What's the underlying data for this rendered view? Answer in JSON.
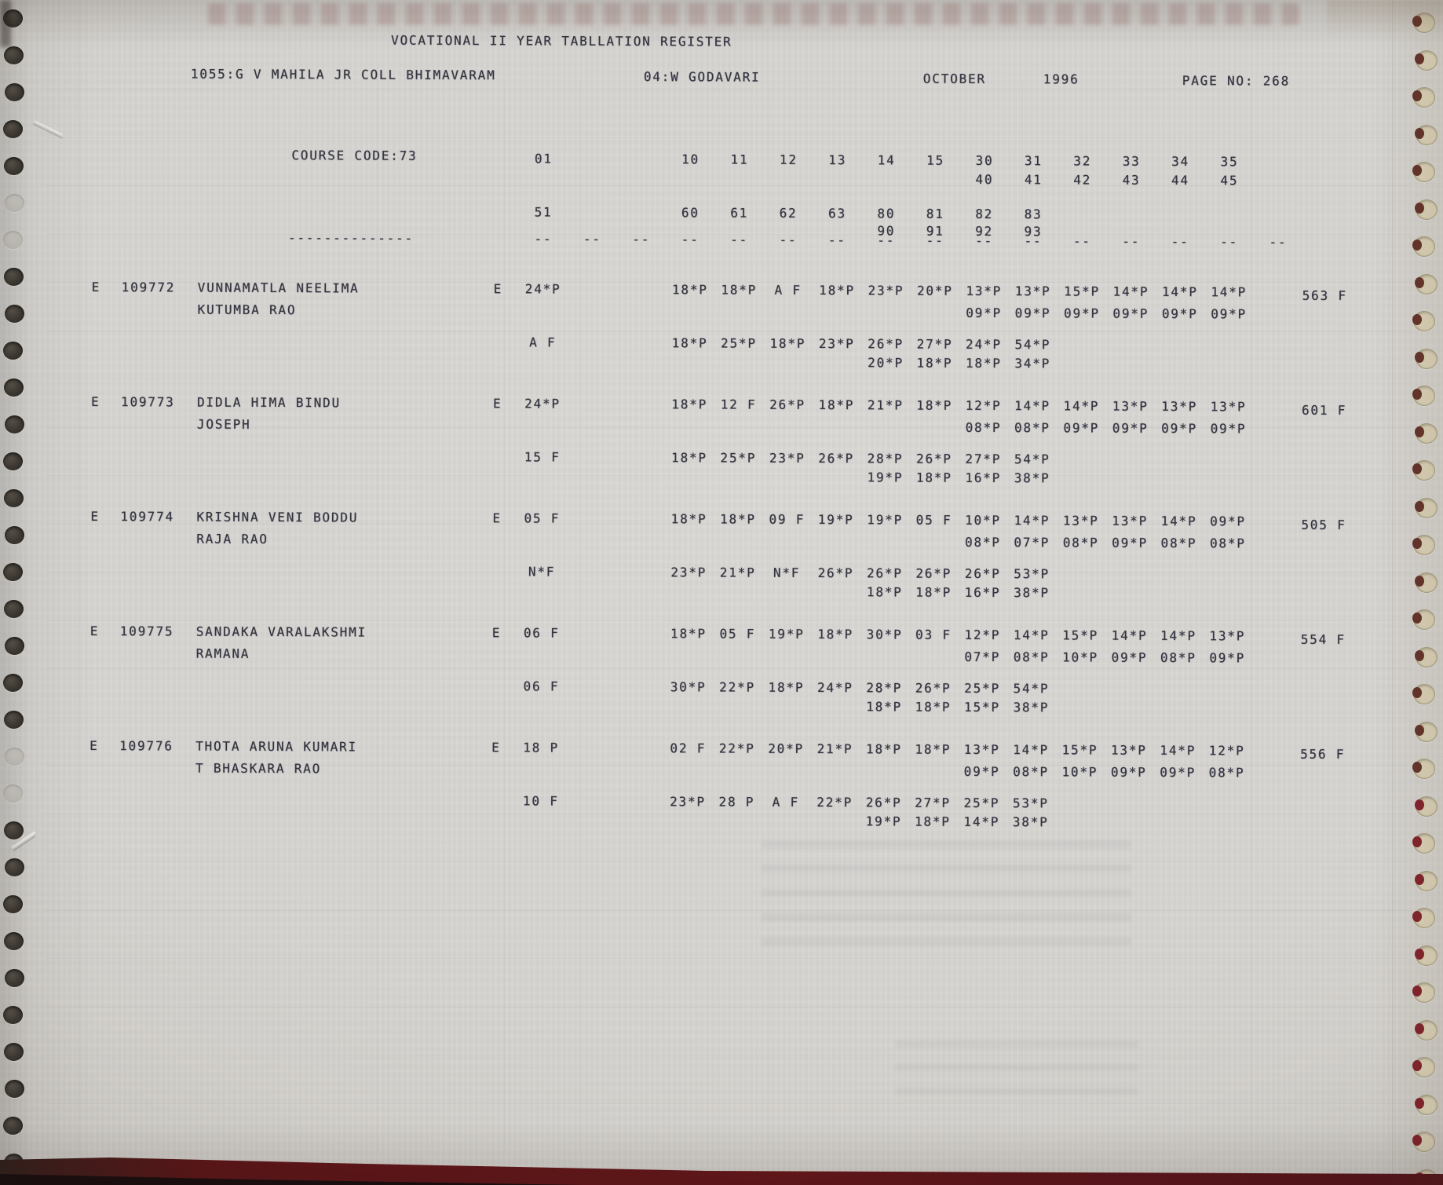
{
  "header": {
    "title": "VOCATIONAL II YEAR TABLLATION REGISTER",
    "college": "1055:G V MAHILA JR COLL BHIMAVARAM",
    "district": "04:W GODAVARI",
    "month": "OCTOBER",
    "year": "1996",
    "page_no": "PAGE NO: 268"
  },
  "course": {
    "label": "COURSE CODE:73",
    "col01": "01",
    "row1": [
      "10",
      "11",
      "12",
      "13",
      "14",
      "15",
      "30",
      "31",
      "32",
      "33",
      "34",
      "35"
    ],
    "row2": [
      "40",
      "41",
      "42",
      "43",
      "44",
      "45"
    ],
    "col51": "51",
    "row3": [
      "60",
      "61",
      "62",
      "63",
      "80",
      "81",
      "82",
      "83"
    ],
    "row4": [
      "90",
      "91",
      "92",
      "93"
    ],
    "dash_long": "--------------",
    "dash": "--"
  },
  "records": [
    {
      "flag": "E",
      "regno": "109772",
      "name1": "VUNNAMATLA NEELIMA",
      "name2": "KUTUMBA RAO",
      "p1flag": "E",
      "p1first": "24*P",
      "p1r1": [
        "18*P",
        "18*P",
        "A F",
        "18*P",
        "23*P",
        "20*P",
        "13*P",
        "13*P",
        "15*P",
        "14*P",
        "14*P",
        "14*P"
      ],
      "p1r2": [
        "09*P",
        "09*P",
        "09*P",
        "09*P",
        "09*P",
        "09*P"
      ],
      "p2first": "A F",
      "p2r1": [
        "18*P",
        "25*P",
        "18*P",
        "23*P",
        "26*P",
        "27*P",
        "24*P",
        "54*P"
      ],
      "p2r2": [
        "20*P",
        "18*P",
        "18*P",
        "34*P"
      ],
      "total": "563 F"
    },
    {
      "flag": "E",
      "regno": "109773",
      "name1": "DIDLA HIMA BINDU",
      "name2": "JOSEPH",
      "p1flag": "E",
      "p1first": "24*P",
      "p1r1": [
        "18*P",
        "12 F",
        "26*P",
        "18*P",
        "21*P",
        "18*P",
        "12*P",
        "14*P",
        "14*P",
        "13*P",
        "13*P",
        "13*P"
      ],
      "p1r2": [
        "08*P",
        "08*P",
        "09*P",
        "09*P",
        "09*P",
        "09*P"
      ],
      "p2first": "15 F",
      "p2r1": [
        "18*P",
        "25*P",
        "23*P",
        "26*P",
        "28*P",
        "26*P",
        "27*P",
        "54*P"
      ],
      "p2r2": [
        "19*P",
        "18*P",
        "16*P",
        "38*P"
      ],
      "total": "601 F"
    },
    {
      "flag": "E",
      "regno": "109774",
      "name1": "KRISHNA VENI BODDU",
      "name2": "RAJA RAO",
      "p1flag": "E",
      "p1first": "05 F",
      "p1r1": [
        "18*P",
        "18*P",
        "09 F",
        "19*P",
        "19*P",
        "05 F",
        "10*P",
        "14*P",
        "13*P",
        "13*P",
        "14*P",
        "09*P"
      ],
      "p1r2": [
        "08*P",
        "07*P",
        "08*P",
        "09*P",
        "08*P",
        "08*P"
      ],
      "p2first": "N*F",
      "p2r1": [
        "23*P",
        "21*P",
        "N*F",
        "26*P",
        "26*P",
        "26*P",
        "26*P",
        "53*P"
      ],
      "p2r2": [
        "18*P",
        "18*P",
        "16*P",
        "38*P"
      ],
      "total": "505 F"
    },
    {
      "flag": "E",
      "regno": "109775",
      "name1": "SANDAKA VARALAKSHMI",
      "name2": "RAMANA",
      "p1flag": "E",
      "p1first": "06 F",
      "p1r1": [
        "18*P",
        "05 F",
        "19*P",
        "18*P",
        "30*P",
        "03 F",
        "12*P",
        "14*P",
        "15*P",
        "14*P",
        "14*P",
        "13*P"
      ],
      "p1r2": [
        "07*P",
        "08*P",
        "10*P",
        "09*P",
        "08*P",
        "09*P"
      ],
      "p2first": "06 F",
      "p2r1": [
        "30*P",
        "22*P",
        "18*P",
        "24*P",
        "28*P",
        "26*P",
        "25*P",
        "54*P"
      ],
      "p2r2": [
        "18*P",
        "18*P",
        "15*P",
        "38*P"
      ],
      "total": "554 F"
    },
    {
      "flag": "E",
      "regno": "109776",
      "name1": "THOTA ARUNA KUMARI",
      "name2": "T BHASKARA RAO",
      "p1flag": "E",
      "p1first": "18 P",
      "p1r1": [
        "02 F",
        "22*P",
        "20*P",
        "21*P",
        "18*P",
        "18*P",
        "13*P",
        "14*P",
        "15*P",
        "13*P",
        "14*P",
        "12*P"
      ],
      "p1r2": [
        "09*P",
        "08*P",
        "10*P",
        "09*P",
        "09*P",
        "08*P"
      ],
      "p2first": "10 F",
      "p2r1": [
        "23*P",
        "28 P",
        "A F",
        "22*P",
        "26*P",
        "27*P",
        "25*P",
        "53*P"
      ],
      "p2r2": [
        "19*P",
        "18*P",
        "14*P",
        "38*P"
      ],
      "total": "556 F"
    }
  ],
  "colors": {
    "ink": "#34343f",
    "paper": "#d6d4d0",
    "binder_maroon": "#5d1417"
  }
}
